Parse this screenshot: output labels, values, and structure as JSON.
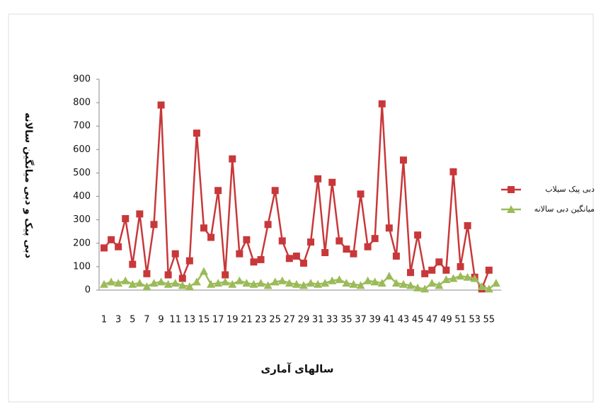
{
  "chart_data": {
    "type": "line",
    "x_label": "سالهای آماری",
    "y_label": "دبی پیک و دبی میانگین سالانه",
    "categories": [
      1,
      null,
      3,
      null,
      5,
      null,
      7,
      null,
      9,
      null,
      11,
      null,
      13,
      null,
      15,
      null,
      17,
      null,
      19,
      null,
      21,
      null,
      23,
      null,
      25,
      null,
      27,
      null,
      29,
      null,
      31,
      null,
      33,
      null,
      35,
      null,
      37,
      null,
      39,
      null,
      41,
      null,
      43,
      null,
      45,
      null,
      47,
      null,
      49,
      null,
      51,
      null,
      53,
      null,
      55,
      null
    ],
    "series": [
      {
        "name": "دبی پیک سیلاب",
        "color": "#c8383a",
        "marker": "square",
        "values": [
          180,
          215,
          185,
          305,
          110,
          325,
          70,
          280,
          790,
          65,
          155,
          50,
          125,
          670,
          265,
          225,
          425,
          65,
          560,
          155,
          215,
          120,
          130,
          280,
          425,
          210,
          135,
          145,
          115,
          205,
          475,
          160,
          460,
          210,
          175,
          155,
          410,
          185,
          220,
          795,
          265,
          145,
          555,
          75,
          235,
          70,
          85,
          120,
          85,
          505,
          100,
          275,
          55,
          5,
          85,
          null
        ]
      },
      {
        "name": "میانگین دبی سالانه",
        "color": "#9bbb59",
        "marker": "triangle",
        "values": [
          25,
          35,
          30,
          40,
          25,
          30,
          15,
          30,
          35,
          25,
          30,
          20,
          15,
          35,
          80,
          25,
          30,
          35,
          25,
          40,
          30,
          25,
          30,
          20,
          35,
          40,
          30,
          25,
          20,
          30,
          25,
          30,
          40,
          45,
          30,
          25,
          20,
          40,
          35,
          30,
          60,
          30,
          25,
          20,
          10,
          5,
          30,
          20,
          45,
          50,
          60,
          55,
          50,
          15,
          5,
          30
        ]
      }
    ],
    "ylim": [
      0,
      900
    ],
    "yticks": [
      0,
      100,
      200,
      300,
      400,
      500,
      600,
      700,
      800,
      900
    ]
  }
}
